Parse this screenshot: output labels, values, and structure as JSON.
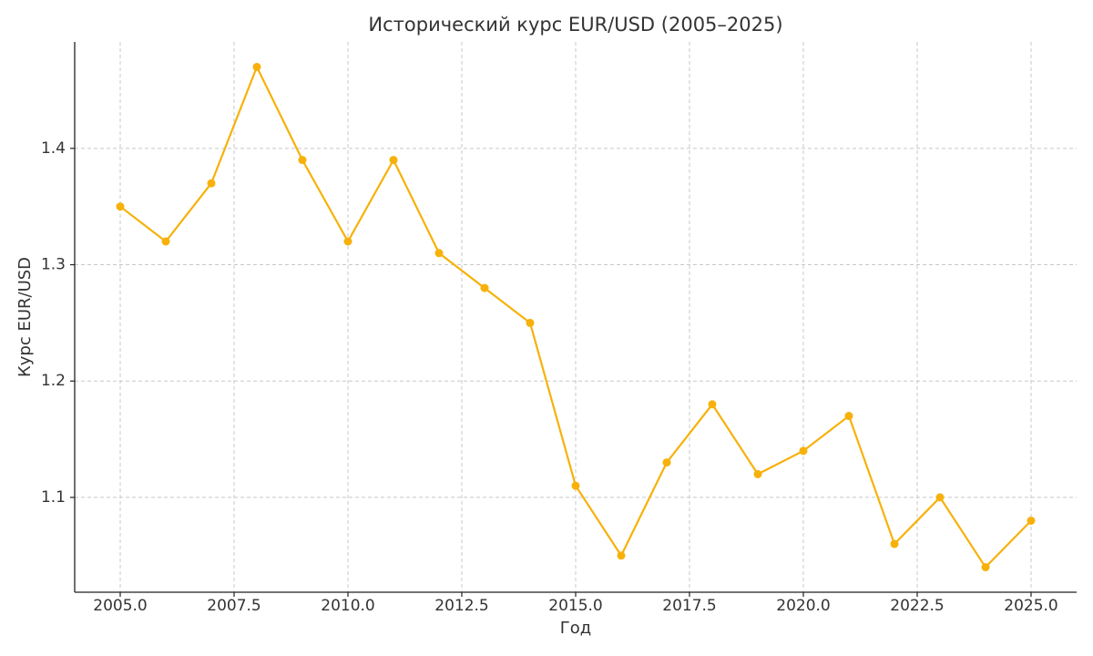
{
  "chart_data": {
    "type": "line",
    "title": "Исторический курс EUR/USD (2005–2025)",
    "x_label": "Год",
    "y_label": "Курс EUR/USD",
    "x": [
      2005,
      2006,
      2007,
      2008,
      2009,
      2010,
      2011,
      2012,
      2013,
      2014,
      2015,
      2016,
      2017,
      2018,
      2019,
      2020,
      2021,
      2022,
      2023,
      2024,
      2025
    ],
    "series": [
      {
        "name": "EUR/USD",
        "color": "#f7b10a",
        "values": [
          1.35,
          1.32,
          1.37,
          1.47,
          1.39,
          1.32,
          1.39,
          1.31,
          1.28,
          1.25,
          1.11,
          1.05,
          1.13,
          1.18,
          1.12,
          1.14,
          1.17,
          1.06,
          1.1,
          1.04,
          1.08
        ]
      }
    ],
    "xlim": [
      2004,
      2026
    ],
    "ylim": [
      1.0185,
      1.4915
    ],
    "xticks": [
      {
        "value": 2005,
        "label": "2005.0"
      },
      {
        "value": 2007.5,
        "label": "2007.5"
      },
      {
        "value": 2010,
        "label": "2010.0"
      },
      {
        "value": 2012.5,
        "label": "2012.5"
      },
      {
        "value": 2015,
        "label": "2015.0"
      },
      {
        "value": 2017.5,
        "label": "2017.5"
      },
      {
        "value": 2020,
        "label": "2020.0"
      },
      {
        "value": 2022.5,
        "label": "2022.5"
      },
      {
        "value": 2025,
        "label": "2025.0"
      }
    ],
    "yticks": [
      1.1,
      1.2,
      1.3,
      1.4
    ],
    "grid": true
  }
}
